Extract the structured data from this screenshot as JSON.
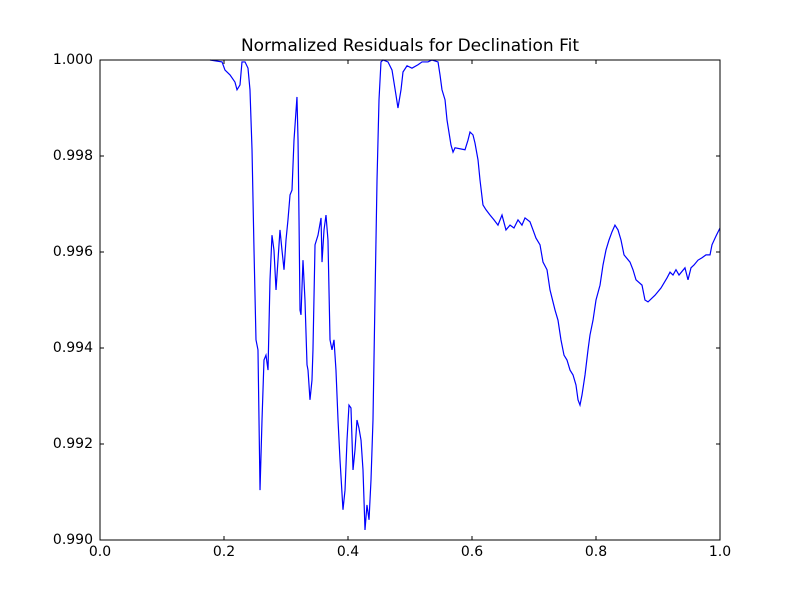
{
  "chart_data": {
    "type": "line",
    "title": "Normalized Residuals for Declination Fit",
    "xlim": [
      0,
      1
    ],
    "ylim": [
      0.99,
      1.0
    ],
    "xticks": [
      {
        "value": 0,
        "label": "0.0"
      },
      0.2,
      0.4,
      0.6,
      0.8,
      {
        "value": 1,
        "label": "1.0"
      }
    ],
    "yticks": [
      {
        "value": 0.99,
        "label": "0.990"
      },
      0.992,
      0.994,
      0.996,
      0.998,
      {
        "value": 1.0,
        "label": "1.000"
      }
    ],
    "grid": false,
    "series": [
      {
        "color": "#0000ff",
        "x": [
          0.1774,
          0.1968,
          0.2016,
          0.2097,
          0.2177,
          0.221,
          0.2258,
          0.229,
          0.2339,
          0.2387,
          0.2419,
          0.2452,
          0.2484,
          0.2516,
          0.2548,
          0.2581,
          0.2613,
          0.2645,
          0.2677,
          0.271,
          0.2742,
          0.2774,
          0.2806,
          0.2839,
          0.2903,
          0.2935,
          0.2968,
          0.3,
          0.3032,
          0.3065,
          0.3097,
          0.3129,
          0.3177,
          0.3194,
          0.321,
          0.3226,
          0.3242,
          0.3274,
          0.3306,
          0.3339,
          0.3355,
          0.3387,
          0.3419,
          0.3435,
          0.3468,
          0.3516,
          0.3565,
          0.3581,
          0.3613,
          0.3645,
          0.3677,
          0.371,
          0.3742,
          0.3774,
          0.3806,
          0.3839,
          0.3871,
          0.3919,
          0.3952,
          0.3984,
          0.4016,
          0.4048,
          0.4081,
          0.4113,
          0.4145,
          0.4177,
          0.421,
          0.4242,
          0.4274,
          0.4306,
          0.4339,
          0.4371,
          0.4403,
          0.4435,
          0.4468,
          0.45,
          0.4532,
          0.4565,
          0.4645,
          0.471,
          0.4774,
          0.4806,
          0.4855,
          0.4887,
          0.4952,
          0.5032,
          0.5129,
          0.5194,
          0.529,
          0.5355,
          0.5452,
          0.5484,
          0.5516,
          0.5565,
          0.5597,
          0.5661,
          0.5694,
          0.5726,
          0.5887,
          0.5935,
          0.5968,
          0.6016,
          0.6048,
          0.6097,
          0.6129,
          0.6177,
          0.6226,
          0.629,
          0.6355,
          0.6419,
          0.6484,
          0.6548,
          0.6613,
          0.6677,
          0.6742,
          0.6806,
          0.6855,
          0.6935,
          0.6984,
          0.7032,
          0.7097,
          0.7145,
          0.721,
          0.7258,
          0.7339,
          0.7387,
          0.7435,
          0.7484,
          0.7532,
          0.7581,
          0.7629,
          0.7677,
          0.771,
          0.7742,
          0.7774,
          0.7823,
          0.7871,
          0.7903,
          0.7952,
          0.8,
          0.8065,
          0.8113,
          0.8161,
          0.821,
          0.8258,
          0.8306,
          0.8355,
          0.8403,
          0.8452,
          0.8548,
          0.8597,
          0.8645,
          0.8742,
          0.879,
          0.8839,
          0.8952,
          0.9048,
          0.9145,
          0.9194,
          0.9242,
          0.929,
          0.9339,
          0.9435,
          0.9484,
          0.9532,
          0.9581,
          0.9645,
          0.971,
          0.9774,
          0.9839,
          0.9871,
          0.9935,
          1.0
        ],
        "values": [
          1.0,
          0.99996,
          0.99979,
          0.99969,
          0.99954,
          0.99938,
          0.99948,
          0.99996,
          0.99996,
          0.99983,
          0.99938,
          0.99813,
          0.99604,
          0.99417,
          0.99396,
          0.99104,
          0.9925,
          0.99375,
          0.99385,
          0.99354,
          0.99542,
          0.99635,
          0.99604,
          0.99521,
          0.99646,
          0.99604,
          0.99563,
          0.99625,
          0.99667,
          0.99719,
          0.99729,
          0.99833,
          0.99923,
          0.99833,
          0.99667,
          0.99479,
          0.99469,
          0.99583,
          0.995,
          0.99365,
          0.99354,
          0.99292,
          0.99333,
          0.99396,
          0.99615,
          0.99635,
          0.99671,
          0.99579,
          0.99646,
          0.99677,
          0.99625,
          0.99417,
          0.99396,
          0.99417,
          0.99354,
          0.9925,
          0.99167,
          0.99063,
          0.99104,
          0.99208,
          0.99281,
          0.99275,
          0.99146,
          0.99188,
          0.9925,
          0.99233,
          0.99208,
          0.99146,
          0.99021,
          0.99073,
          0.99042,
          0.99125,
          0.9925,
          0.995,
          0.9975,
          0.99917,
          0.99996,
          1.0,
          0.99996,
          0.99979,
          0.99927,
          0.999,
          0.99938,
          0.99975,
          0.99988,
          0.99983,
          0.9999,
          0.99996,
          0.99996,
          1.0,
          0.99996,
          0.99969,
          0.99938,
          0.99917,
          0.99875,
          0.99823,
          0.99808,
          0.99817,
          0.99813,
          0.99833,
          0.9985,
          0.99844,
          0.99827,
          0.99792,
          0.9975,
          0.99698,
          0.99688,
          0.99677,
          0.99667,
          0.99656,
          0.99677,
          0.99646,
          0.99656,
          0.9965,
          0.99667,
          0.99656,
          0.99671,
          0.99663,
          0.99646,
          0.99629,
          0.99615,
          0.99579,
          0.99563,
          0.99521,
          0.99479,
          0.99458,
          0.99417,
          0.99385,
          0.99375,
          0.99354,
          0.99344,
          0.99323,
          0.99292,
          0.99281,
          0.99302,
          0.99344,
          0.99396,
          0.99427,
          0.99458,
          0.995,
          0.99531,
          0.99573,
          0.99604,
          0.99625,
          0.99642,
          0.99656,
          0.99646,
          0.99625,
          0.99594,
          0.99579,
          0.99563,
          0.99542,
          0.99531,
          0.995,
          0.99496,
          0.9951,
          0.99525,
          0.99546,
          0.99558,
          0.99552,
          0.99563,
          0.99552,
          0.99567,
          0.99542,
          0.99567,
          0.99573,
          0.99583,
          0.99588,
          0.99594,
          0.99594,
          0.99615,
          0.99633,
          0.9965
        ]
      }
    ]
  }
}
